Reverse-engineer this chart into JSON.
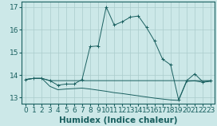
{
  "title": "",
  "xlabel": "Humidex (Indice chaleur)",
  "xlim": [
    -0.5,
    23.5
  ],
  "ylim": [
    12.75,
    17.25
  ],
  "yticks": [
    13,
    14,
    15,
    16,
    17
  ],
  "xticks": [
    0,
    1,
    2,
    3,
    4,
    5,
    6,
    7,
    8,
    9,
    10,
    11,
    12,
    13,
    14,
    15,
    16,
    17,
    18,
    19,
    20,
    21,
    22,
    23
  ],
  "background_color": "#cce8e8",
  "grid_color": "#aacccc",
  "line_color": "#1a6060",
  "line0_x": [
    0,
    1,
    2,
    3,
    4,
    5,
    6,
    7,
    8,
    9,
    10,
    11,
    12,
    13,
    14,
    15,
    16,
    17,
    18,
    19,
    20,
    21,
    22,
    23
  ],
  "line0_y": [
    13.8,
    13.85,
    13.85,
    13.75,
    13.55,
    13.6,
    13.6,
    13.8,
    15.25,
    15.28,
    17.0,
    16.2,
    16.35,
    16.55,
    16.6,
    16.1,
    15.5,
    14.7,
    14.45,
    12.9,
    13.75,
    14.05,
    13.7,
    13.75
  ],
  "line1_x": [
    0,
    1,
    2,
    3,
    4,
    5,
    6,
    7,
    19,
    20,
    21,
    22,
    23
  ],
  "line1_y": [
    13.8,
    13.85,
    13.85,
    13.75,
    13.75,
    13.75,
    13.75,
    13.75,
    13.75,
    13.75,
    13.75,
    13.75,
    13.75
  ],
  "line2_x": [
    0,
    1,
    2,
    3,
    4,
    5,
    6,
    7,
    8,
    9,
    10,
    11,
    12,
    13,
    14,
    15,
    16,
    17,
    18,
    19,
    20,
    21,
    22,
    23
  ],
  "line2_y": [
    13.8,
    13.85,
    13.85,
    13.5,
    13.35,
    13.38,
    13.4,
    13.42,
    13.38,
    13.33,
    13.28,
    13.22,
    13.18,
    13.13,
    13.08,
    13.03,
    12.98,
    12.94,
    12.9,
    12.88,
    13.72,
    13.74,
    13.68,
    13.72
  ],
  "fontsize_tick": 6.5,
  "fontsize_label": 7.5
}
